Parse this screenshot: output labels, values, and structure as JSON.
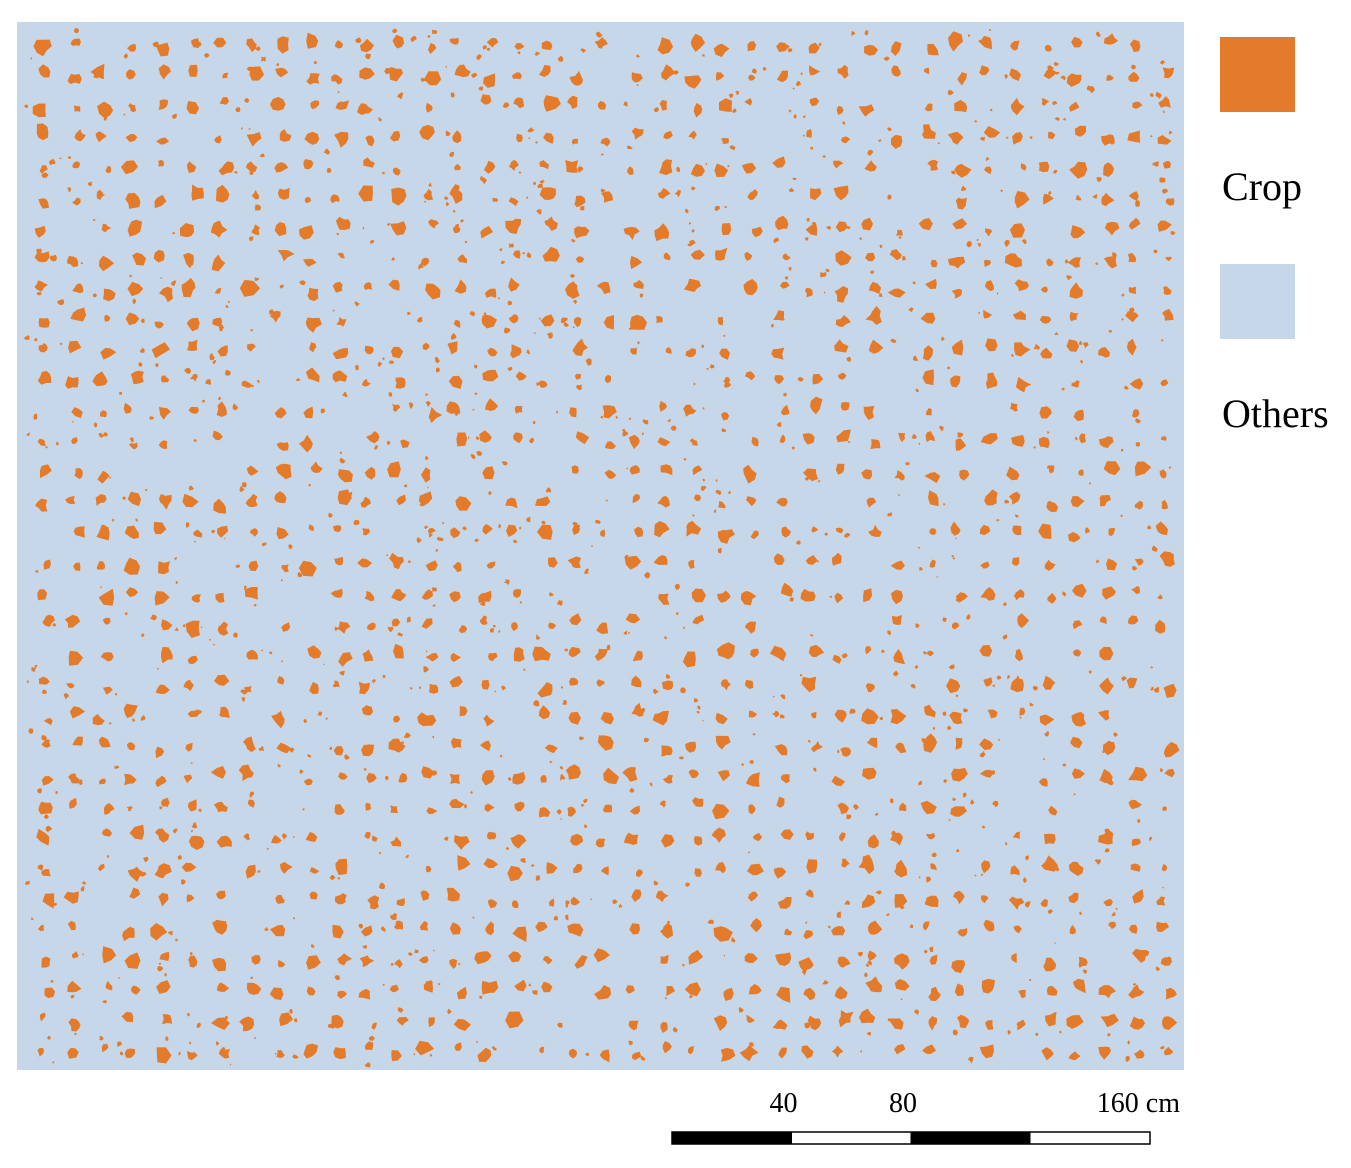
{
  "legend": [
    {
      "label": "Crop",
      "color": "#e47b2a"
    },
    {
      "label": "Others",
      "color": "#c6d7e9"
    }
  ],
  "scale_bar": {
    "ticks": [
      {
        "value": 40,
        "label": "40"
      },
      {
        "value": 80,
        "label": "80"
      },
      {
        "value": 160,
        "label": "160 cm"
      }
    ]
  }
}
